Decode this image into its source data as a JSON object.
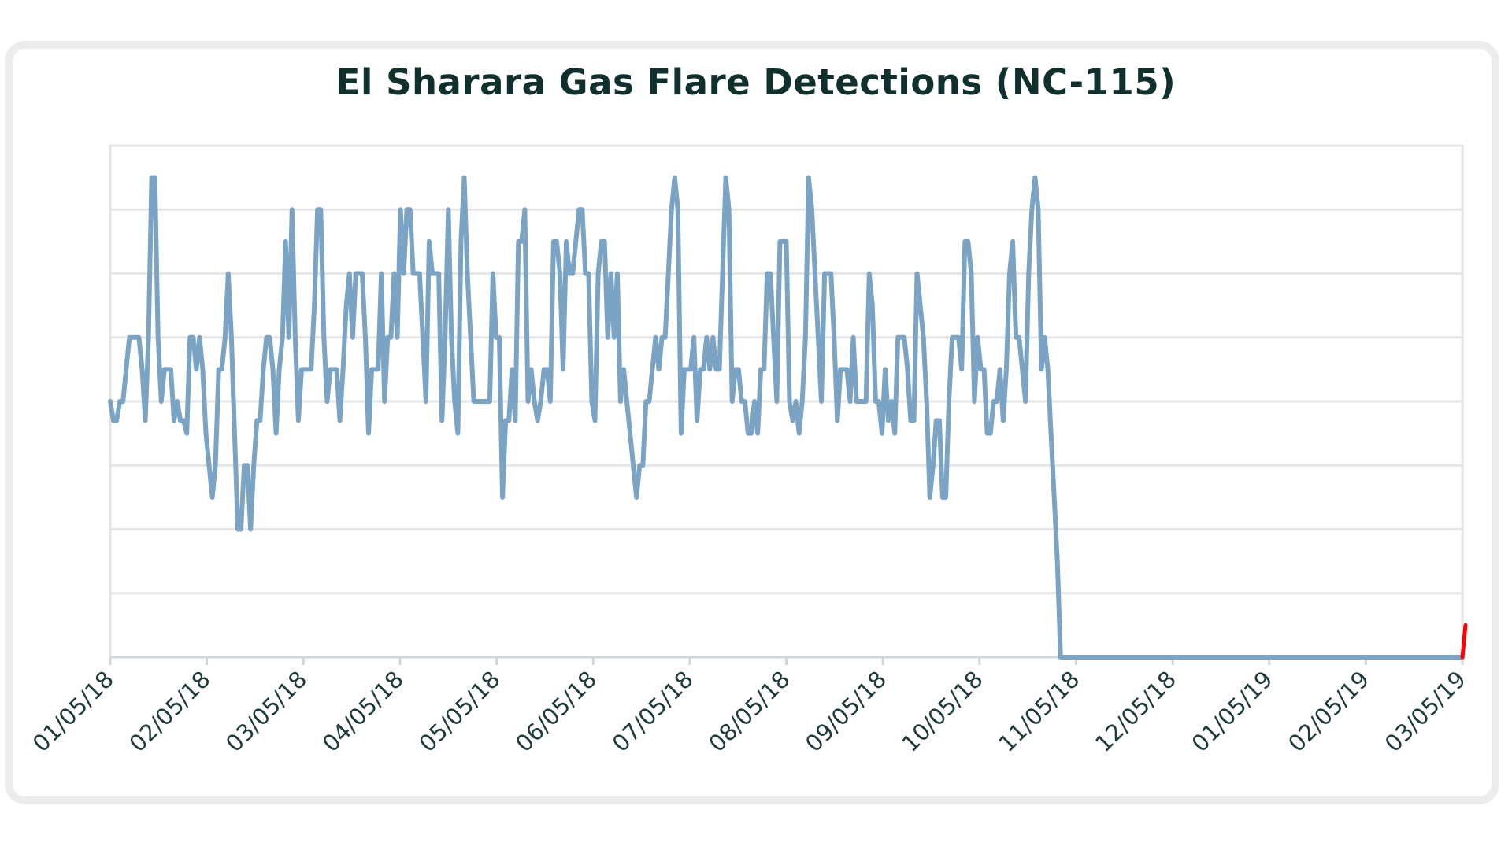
{
  "chart_data": {
    "type": "line",
    "title": "El Sharara Gas Flare Detections (NC-115)",
    "xlabel": "",
    "ylabel": "",
    "x_tick_labels": [
      "01/05/18",
      "02/05/18",
      "03/05/18",
      "04/05/18",
      "05/05/18",
      "06/05/18",
      "07/05/18",
      "08/05/18",
      "09/05/18",
      "10/05/18",
      "11/05/18",
      "12/05/18",
      "01/05/19",
      "02/05/19",
      "03/05/19"
    ],
    "ylim": [
      0,
      8
    ],
    "grid": true,
    "series": [
      {
        "color": "#7aa3c4",
        "values": [
          [
            0,
            4
          ],
          [
            1,
            3.7
          ],
          [
            2,
            3.7
          ],
          [
            3,
            4
          ],
          [
            4,
            4
          ],
          [
            5,
            4.5
          ],
          [
            6,
            5
          ],
          [
            7,
            5
          ],
          [
            8,
            5
          ],
          [
            9,
            5
          ],
          [
            10,
            4.5
          ],
          [
            11,
            3.7
          ],
          [
            12,
            5
          ],
          [
            13,
            7.5
          ],
          [
            14,
            7.5
          ],
          [
            15,
            5
          ],
          [
            16,
            4
          ],
          [
            17,
            4.5
          ],
          [
            18,
            4.5
          ],
          [
            19,
            4.5
          ],
          [
            20,
            3.7
          ],
          [
            21,
            4
          ],
          [
            22,
            3.7
          ],
          [
            23,
            3.7
          ],
          [
            24,
            3.5
          ],
          [
            25,
            5
          ],
          [
            26,
            5
          ],
          [
            27,
            4.5
          ],
          [
            28,
            5
          ],
          [
            29,
            4.5
          ],
          [
            30,
            3.5
          ],
          [
            31,
            3
          ],
          [
            32,
            2.5
          ],
          [
            33,
            3
          ],
          [
            34,
            4.5
          ],
          [
            35,
            4.5
          ],
          [
            36,
            5
          ],
          [
            37,
            6
          ],
          [
            38,
            5
          ],
          [
            39,
            3.5
          ],
          [
            40,
            2
          ],
          [
            41,
            2
          ],
          [
            42,
            3
          ],
          [
            43,
            3
          ],
          [
            44,
            2
          ],
          [
            45,
            3
          ],
          [
            46,
            3.7
          ],
          [
            47,
            3.7
          ],
          [
            48,
            4.5
          ],
          [
            49,
            5
          ],
          [
            50,
            5
          ],
          [
            51,
            4.5
          ],
          [
            52,
            3.5
          ],
          [
            53,
            4.5
          ],
          [
            54,
            5
          ],
          [
            55,
            6.5
          ],
          [
            56,
            5
          ],
          [
            57,
            7
          ],
          [
            58,
            5
          ],
          [
            59,
            3.7
          ],
          [
            60,
            4.5
          ],
          [
            61,
            4.5
          ],
          [
            62,
            4.5
          ],
          [
            63,
            4.5
          ],
          [
            64,
            5.5
          ],
          [
            65,
            7
          ],
          [
            66,
            7
          ],
          [
            67,
            5
          ],
          [
            68,
            4
          ],
          [
            69,
            4.5
          ],
          [
            70,
            4.5
          ],
          [
            71,
            4.5
          ],
          [
            72,
            3.7
          ],
          [
            73,
            4.5
          ],
          [
            74,
            5.5
          ],
          [
            75,
            6
          ],
          [
            76,
            5
          ],
          [
            77,
            6
          ],
          [
            78,
            6
          ],
          [
            79,
            6
          ],
          [
            80,
            5
          ],
          [
            81,
            3.5
          ],
          [
            82,
            4.5
          ],
          [
            83,
            4.5
          ],
          [
            84,
            4.5
          ],
          [
            85,
            6
          ],
          [
            86,
            4
          ],
          [
            87,
            5
          ],
          [
            88,
            5
          ],
          [
            89,
            6
          ],
          [
            90,
            5
          ],
          [
            91,
            7
          ],
          [
            92,
            6
          ],
          [
            93,
            7
          ],
          [
            94,
            7
          ],
          [
            95,
            6
          ],
          [
            96,
            6
          ],
          [
            97,
            6
          ],
          [
            98,
            5
          ],
          [
            99,
            4
          ],
          [
            100,
            6.5
          ],
          [
            101,
            6
          ],
          [
            102,
            6
          ],
          [
            103,
            6
          ],
          [
            104,
            3.7
          ],
          [
            105,
            5
          ],
          [
            106,
            7
          ],
          [
            107,
            5
          ],
          [
            108,
            4
          ],
          [
            109,
            3.5
          ],
          [
            110,
            6.5
          ],
          [
            111,
            7.5
          ],
          [
            112,
            6
          ],
          [
            113,
            5
          ],
          [
            114,
            4
          ],
          [
            115,
            4
          ],
          [
            116,
            4
          ],
          [
            117,
            4
          ],
          [
            118,
            4
          ],
          [
            119,
            4
          ],
          [
            120,
            6
          ],
          [
            121,
            5
          ],
          [
            122,
            5
          ],
          [
            123,
            2.5
          ],
          [
            124,
            3.7
          ],
          [
            125,
            3.7
          ],
          [
            126,
            4.5
          ],
          [
            127,
            3.7
          ],
          [
            128,
            6.5
          ],
          [
            129,
            6.5
          ],
          [
            130,
            7
          ],
          [
            131,
            4
          ],
          [
            132,
            4.5
          ],
          [
            133,
            4
          ],
          [
            134,
            3.7
          ],
          [
            135,
            4
          ],
          [
            136,
            4.5
          ],
          [
            137,
            4.5
          ],
          [
            138,
            4
          ],
          [
            139,
            6.5
          ],
          [
            140,
            6.5
          ],
          [
            141,
            6
          ],
          [
            142,
            4.5
          ],
          [
            143,
            6.5
          ],
          [
            144,
            6
          ],
          [
            145,
            6
          ],
          [
            146,
            6.5
          ],
          [
            147,
            7
          ],
          [
            148,
            7
          ],
          [
            149,
            6
          ],
          [
            150,
            6
          ],
          [
            151,
            4
          ],
          [
            152,
            3.7
          ],
          [
            153,
            6
          ],
          [
            154,
            6.5
          ],
          [
            155,
            6.5
          ],
          [
            156,
            5
          ],
          [
            157,
            6
          ],
          [
            158,
            5
          ],
          [
            159,
            6
          ],
          [
            160,
            4
          ],
          [
            161,
            4.5
          ],
          [
            162,
            4
          ],
          [
            163,
            3.5
          ],
          [
            164,
            3
          ],
          [
            165,
            2.5
          ],
          [
            166,
            3
          ],
          [
            167,
            3
          ],
          [
            168,
            4
          ],
          [
            169,
            4
          ],
          [
            170,
            4.5
          ],
          [
            171,
            5
          ],
          [
            172,
            4.5
          ],
          [
            173,
            5
          ],
          [
            174,
            5
          ],
          [
            175,
            6
          ],
          [
            176,
            7
          ],
          [
            177,
            7.5
          ],
          [
            178,
            7
          ],
          [
            179,
            3.5
          ],
          [
            180,
            4.5
          ],
          [
            181,
            4.5
          ],
          [
            182,
            4.5
          ],
          [
            183,
            5
          ],
          [
            184,
            3.7
          ],
          [
            185,
            4.5
          ],
          [
            186,
            4.5
          ],
          [
            187,
            5
          ],
          [
            188,
            4.5
          ],
          [
            189,
            5
          ],
          [
            190,
            4.5
          ],
          [
            191,
            4.5
          ],
          [
            192,
            6
          ],
          [
            193,
            7.5
          ],
          [
            194,
            7
          ],
          [
            195,
            4
          ],
          [
            196,
            4.5
          ],
          [
            197,
            4.5
          ],
          [
            198,
            4
          ],
          [
            199,
            4
          ],
          [
            200,
            3.5
          ],
          [
            201,
            3.5
          ],
          [
            202,
            4
          ],
          [
            203,
            3.5
          ],
          [
            204,
            4.5
          ],
          [
            205,
            4.5
          ],
          [
            206,
            6
          ],
          [
            207,
            6
          ],
          [
            208,
            5
          ],
          [
            209,
            4
          ],
          [
            210,
            6.5
          ],
          [
            211,
            6.5
          ],
          [
            212,
            6.5
          ],
          [
            213,
            4
          ],
          [
            214,
            3.7
          ],
          [
            215,
            4
          ],
          [
            216,
            3.5
          ],
          [
            217,
            4
          ],
          [
            218,
            5
          ],
          [
            219,
            7.5
          ],
          [
            220,
            7
          ],
          [
            221,
            6
          ],
          [
            222,
            5
          ],
          [
            223,
            4
          ],
          [
            224,
            6
          ],
          [
            225,
            6
          ],
          [
            226,
            6
          ],
          [
            227,
            5
          ],
          [
            228,
            3.7
          ],
          [
            229,
            4.5
          ],
          [
            230,
            4.5
          ],
          [
            231,
            4.5
          ],
          [
            232,
            4
          ],
          [
            233,
            5
          ],
          [
            234,
            4
          ],
          [
            235,
            4
          ],
          [
            236,
            4
          ],
          [
            237,
            4
          ],
          [
            238,
            6
          ],
          [
            239,
            5.5
          ],
          [
            240,
            4
          ],
          [
            241,
            4
          ],
          [
            242,
            3.5
          ],
          [
            243,
            4.5
          ],
          [
            244,
            3.7
          ],
          [
            245,
            4
          ],
          [
            246,
            3.5
          ],
          [
            247,
            5
          ],
          [
            248,
            5
          ],
          [
            249,
            5
          ],
          [
            250,
            4.5
          ],
          [
            251,
            3.7
          ],
          [
            252,
            3.7
          ],
          [
            253,
            6
          ],
          [
            254,
            5.5
          ],
          [
            255,
            5
          ],
          [
            256,
            4
          ],
          [
            257,
            2.5
          ],
          [
            258,
            3
          ],
          [
            259,
            3.7
          ],
          [
            260,
            3.7
          ],
          [
            261,
            2.5
          ],
          [
            262,
            2.5
          ],
          [
            263,
            4
          ],
          [
            264,
            5
          ],
          [
            265,
            5
          ],
          [
            266,
            5
          ],
          [
            267,
            4.5
          ],
          [
            268,
            6.5
          ],
          [
            269,
            6.5
          ],
          [
            270,
            6
          ],
          [
            271,
            4
          ],
          [
            272,
            5
          ],
          [
            273,
            4.5
          ],
          [
            274,
            4.5
          ],
          [
            275,
            3.5
          ],
          [
            276,
            3.5
          ],
          [
            277,
            4
          ],
          [
            278,
            4
          ],
          [
            279,
            4.5
          ],
          [
            280,
            3.7
          ],
          [
            281,
            4.5
          ],
          [
            282,
            6
          ],
          [
            283,
            6.5
          ],
          [
            284,
            5
          ],
          [
            285,
            5
          ],
          [
            286,
            4.5
          ],
          [
            287,
            4
          ],
          [
            288,
            6
          ],
          [
            289,
            7
          ],
          [
            290,
            7.5
          ],
          [
            291,
            7
          ],
          [
            292,
            4.5
          ],
          [
            293,
            5
          ],
          [
            294,
            4.5
          ],
          [
            295,
            3.5
          ],
          [
            296,
            2.5
          ],
          [
            297,
            1.5
          ],
          [
            298,
            0
          ],
          [
            299,
            0
          ],
          [
            300,
            0
          ],
          [
            305,
            0
          ],
          [
            310,
            0
          ],
          [
            320,
            0
          ],
          [
            330,
            0
          ],
          [
            340,
            0
          ],
          [
            350,
            0
          ],
          [
            360,
            0
          ],
          [
            370,
            0
          ],
          [
            380,
            0
          ],
          [
            390,
            0
          ],
          [
            400,
            0
          ],
          [
            410,
            0
          ],
          [
            420,
            0
          ],
          [
            424,
            0
          ]
        ]
      },
      {
        "color": "#ff0000",
        "values": [
          [
            424,
            0
          ],
          [
            425,
            0.5
          ]
        ]
      }
    ]
  }
}
